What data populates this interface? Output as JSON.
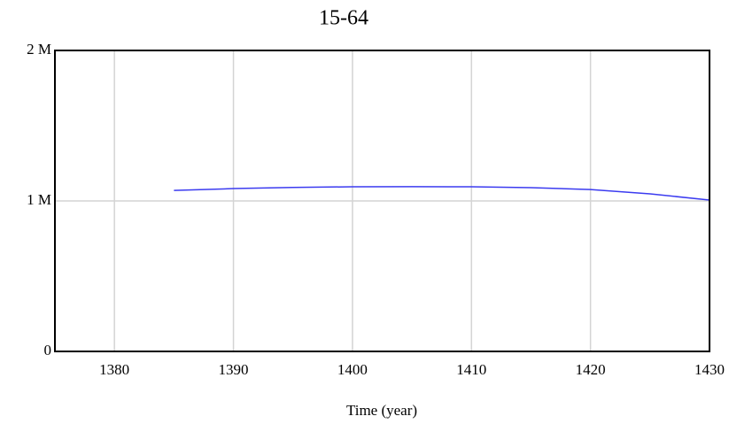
{
  "chart_data": {
    "type": "line",
    "title": "15-64",
    "x_label": "Time (year)",
    "x": [
      1385,
      1390,
      1395,
      1400,
      1405,
      1410,
      1415,
      1420,
      1425,
      1430
    ],
    "series": [
      {
        "name": "15-64",
        "color": "#3b3bf0",
        "values": [
          1070000,
          1082000,
          1090000,
          1094000,
          1095000,
          1094000,
          1088000,
          1076000,
          1047000,
          1006000
        ]
      }
    ],
    "xlim": [
      1375,
      1430
    ],
    "xticks": [
      1380,
      1390,
      1400,
      1410,
      1420,
      1430
    ],
    "ylim": [
      0,
      2000000
    ],
    "yticks": [
      0,
      {
        "value": 1000000,
        "label": "1 M"
      },
      {
        "value": 2000000,
        "label": "2 M"
      }
    ],
    "grid": true
  }
}
